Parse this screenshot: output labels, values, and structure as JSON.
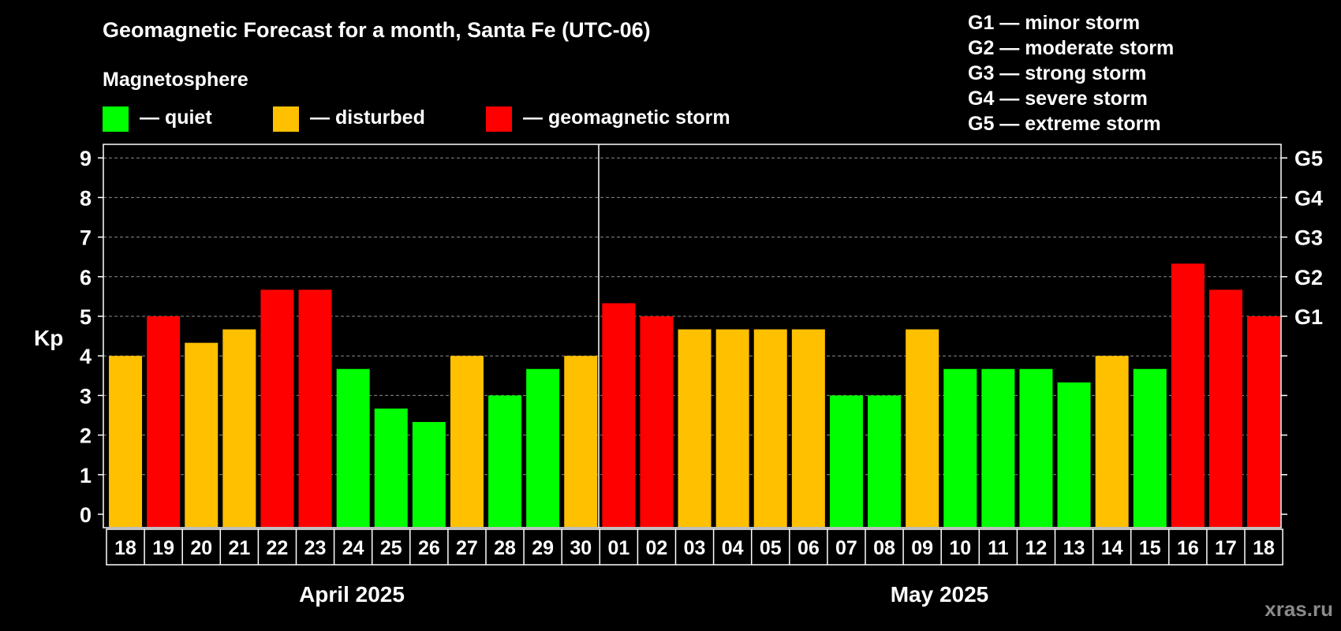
{
  "title": "Geomagnetic Forecast for a month, Santa Fe (UTC-06)",
  "legend": {
    "heading": "Magnetosphere",
    "items": [
      {
        "key": "quiet",
        "label": "— quiet",
        "color": "#00ff00"
      },
      {
        "key": "disturbed",
        "label": "— disturbed",
        "color": "#ffc000"
      },
      {
        "key": "storm",
        "label": "— geomagnetic storm",
        "color": "#ff0000"
      }
    ]
  },
  "storm_scale": [
    "G1 — minor storm",
    "G2 — moderate storm",
    "G3 — strong storm",
    "G4 — severe storm",
    "G5 — extreme storm"
  ],
  "watermark": "xras.ru",
  "chart_data": {
    "type": "bar",
    "title": "Geomagnetic Forecast for a month, Santa Fe (UTC-06)",
    "ylabel": "Kp",
    "ylim": [
      0,
      9
    ],
    "yticks": [
      "0",
      "1",
      "2",
      "3",
      "4",
      "5",
      "6",
      "7",
      "8",
      "9"
    ],
    "right_axis_labels": [
      {
        "level": 5,
        "label": "G1"
      },
      {
        "level": 6,
        "label": "G2"
      },
      {
        "level": 7,
        "label": "G3"
      },
      {
        "level": 8,
        "label": "G4"
      },
      {
        "level": 9,
        "label": "G5"
      }
    ],
    "grid": true,
    "categories": [
      "18",
      "19",
      "20",
      "21",
      "22",
      "23",
      "24",
      "25",
      "26",
      "27",
      "28",
      "29",
      "30",
      "01",
      "02",
      "03",
      "04",
      "05",
      "06",
      "07",
      "08",
      "09",
      "10",
      "11",
      "12",
      "13",
      "14",
      "15",
      "16",
      "17",
      "18"
    ],
    "values": [
      4.0,
      5.0,
      4.33,
      4.67,
      5.67,
      5.67,
      3.67,
      2.67,
      2.33,
      4.0,
      3.0,
      3.67,
      4.0,
      5.33,
      5.0,
      4.67,
      4.67,
      4.67,
      4.67,
      3.0,
      3.0,
      4.67,
      3.67,
      3.67,
      3.67,
      3.33,
      4.0,
      3.67,
      6.33,
      5.67,
      5.0
    ],
    "status": [
      "disturbed",
      "storm",
      "disturbed",
      "disturbed",
      "storm",
      "storm",
      "quiet",
      "quiet",
      "quiet",
      "disturbed",
      "quiet",
      "quiet",
      "disturbed",
      "storm",
      "storm",
      "disturbed",
      "disturbed",
      "disturbed",
      "disturbed",
      "quiet",
      "quiet",
      "disturbed",
      "quiet",
      "quiet",
      "quiet",
      "quiet",
      "disturbed",
      "quiet",
      "storm",
      "storm",
      "storm"
    ],
    "months": [
      {
        "label": "April 2025",
        "start_index": 0,
        "end_index": 12
      },
      {
        "label": "May 2025",
        "start_index": 13,
        "end_index": 30
      }
    ]
  }
}
